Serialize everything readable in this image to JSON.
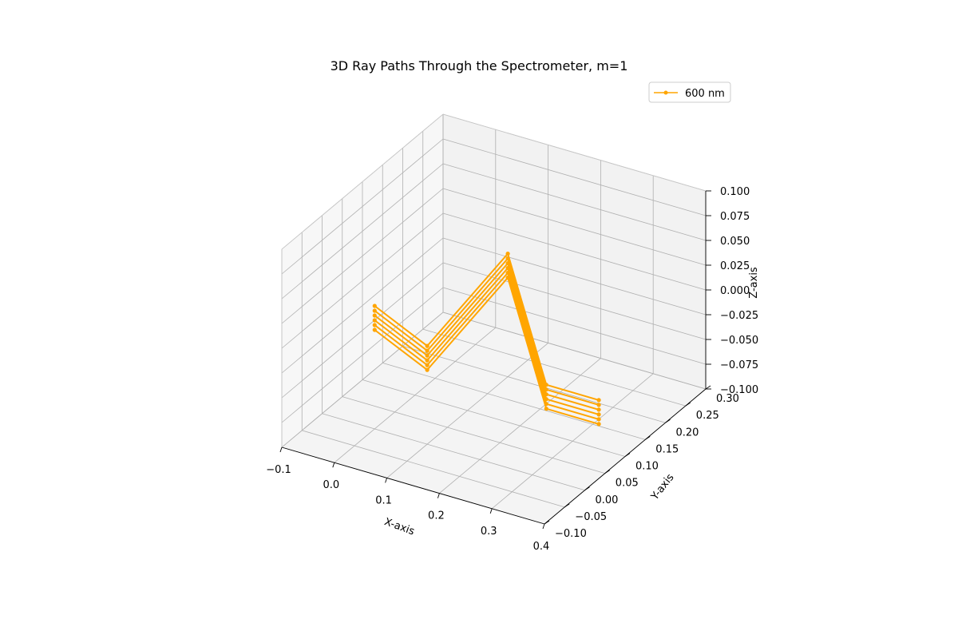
{
  "chart_data": {
    "type": "line",
    "title": "3D Ray Paths Through the Spectrometer, m=1",
    "xlabel": "X-axis",
    "ylabel": "Y-axis",
    "zlabel": "Z-axis",
    "xlim": [
      -0.1,
      0.4
    ],
    "ylim": [
      -0.1,
      0.3
    ],
    "zlim": [
      -0.1,
      0.1
    ],
    "xticks": [
      "−0.1",
      "0.0",
      "0.1",
      "0.2",
      "0.3",
      "0.4"
    ],
    "yticks": [
      "−0.10",
      "−0.05",
      "0.00",
      "0.05",
      "0.10",
      "0.15",
      "0.20",
      "0.25",
      "0.30"
    ],
    "zticks": [
      "−0.100",
      "−0.075",
      "−0.050",
      "−0.025",
      "0.000",
      "0.025",
      "0.050",
      "0.075",
      "0.100"
    ],
    "grid": true,
    "legend": {
      "position": "top-right",
      "entries": [
        "600 nm"
      ]
    },
    "series": [
      {
        "name": "600 nm",
        "color": "#FFA500",
        "marker": "dot",
        "rays": [
          [
            [
              0.0,
              0.0,
              0.0
            ],
            [
              0.1,
              0.0,
              -0.025
            ],
            [
              0.1,
              0.2,
              0.0
            ],
            [
              0.25,
              0.1,
              -0.075
            ],
            [
              0.35,
              0.1,
              -0.075
            ]
          ],
          [
            [
              0.0,
              0.0,
              0.0
            ],
            [
              0.1,
              0.0,
              -0.025
            ],
            [
              0.1,
              0.2,
              0.0
            ],
            [
              0.25,
              0.1,
              -0.075
            ],
            [
              0.35,
              0.1,
              -0.075
            ]
          ],
          [
            [
              0.0,
              0.0,
              0.0
            ],
            [
              0.1,
              0.0,
              -0.025
            ],
            [
              0.1,
              0.2,
              0.0
            ],
            [
              0.25,
              0.1,
              -0.075
            ],
            [
              0.35,
              0.1,
              -0.075
            ]
          ],
          [
            [
              0.0,
              0.0,
              0.0
            ],
            [
              0.1,
              0.0,
              -0.025
            ],
            [
              0.1,
              0.2,
              0.0
            ],
            [
              0.25,
              0.1,
              -0.075
            ],
            [
              0.35,
              0.1,
              -0.075
            ]
          ],
          [
            [
              0.0,
              0.0,
              0.0
            ],
            [
              0.1,
              0.0,
              -0.025
            ],
            [
              0.1,
              0.2,
              0.0
            ],
            [
              0.25,
              0.1,
              -0.075
            ],
            [
              0.35,
              0.1,
              -0.075
            ]
          ],
          [
            [
              0.0,
              0.0,
              0.0
            ],
            [
              0.1,
              0.0,
              -0.025
            ],
            [
              0.1,
              0.2,
              0.0
            ],
            [
              0.25,
              0.1,
              -0.075
            ],
            [
              0.35,
              0.1,
              -0.075
            ]
          ]
        ]
      }
    ]
  }
}
